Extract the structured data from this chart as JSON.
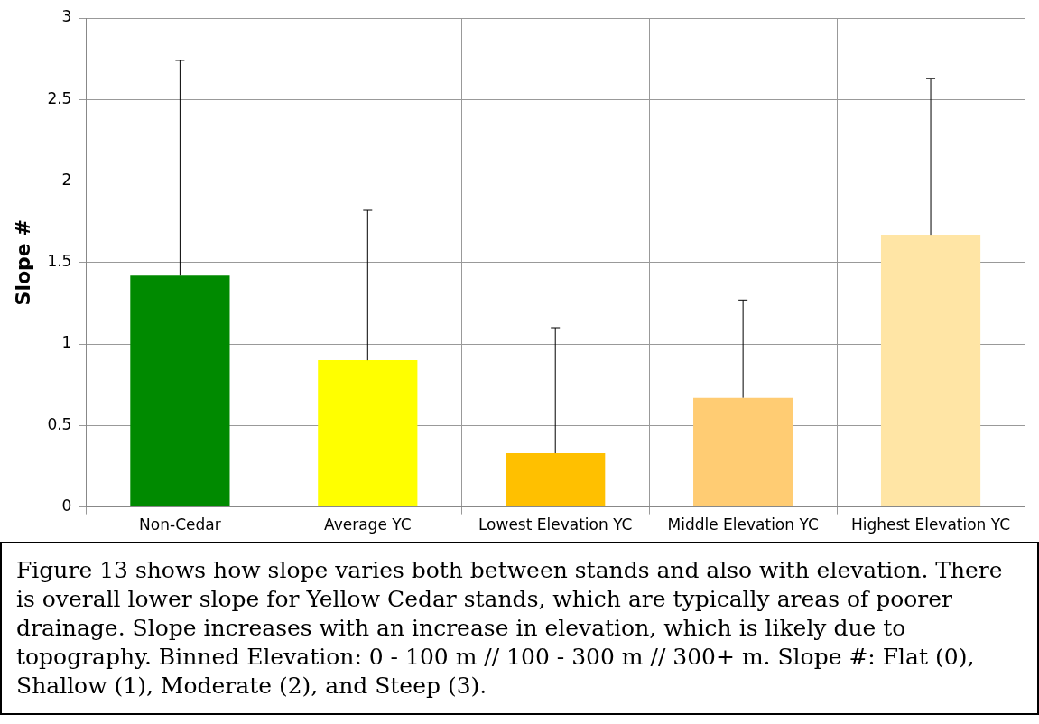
{
  "chart_data": {
    "type": "bar",
    "ylabel": "Slope #",
    "categories": [
      "Non-Cedar",
      "Average YC",
      "Lowest Elevation YC",
      "Middle Elevation YC",
      "Highest Elevation YC"
    ],
    "values": [
      1.42,
      0.9,
      0.33,
      0.67,
      1.67
    ],
    "colors": [
      "#008a00",
      "#ffff00",
      "#ffc000",
      "#ffcc73",
      "#ffe5a5"
    ],
    "errors": [
      [
        1.42,
        2.74
      ],
      [
        0.9,
        1.82
      ],
      [
        0.33,
        1.1
      ],
      [
        0.67,
        1.27
      ],
      [
        1.67,
        2.63
      ]
    ],
    "ylim": [
      0,
      3
    ],
    "yticks": [
      0,
      0.5,
      1,
      1.5,
      2,
      2.5,
      3
    ],
    "grid": true,
    "annotations": [
      "Figure 13 shows how slope varies both between stands and also with elevation. There is overall lower slope for Yellow Cedar stands, which are typically areas of poorer drainage. Slope increases with an increase in elevation, which is likely due to topography. Binned Elevation: 0 - 100 m // 100 - 300 m // 300+ m. Slope #: Flat (0), Shallow (1), Moderate (2), and Steep (3)."
    ]
  }
}
